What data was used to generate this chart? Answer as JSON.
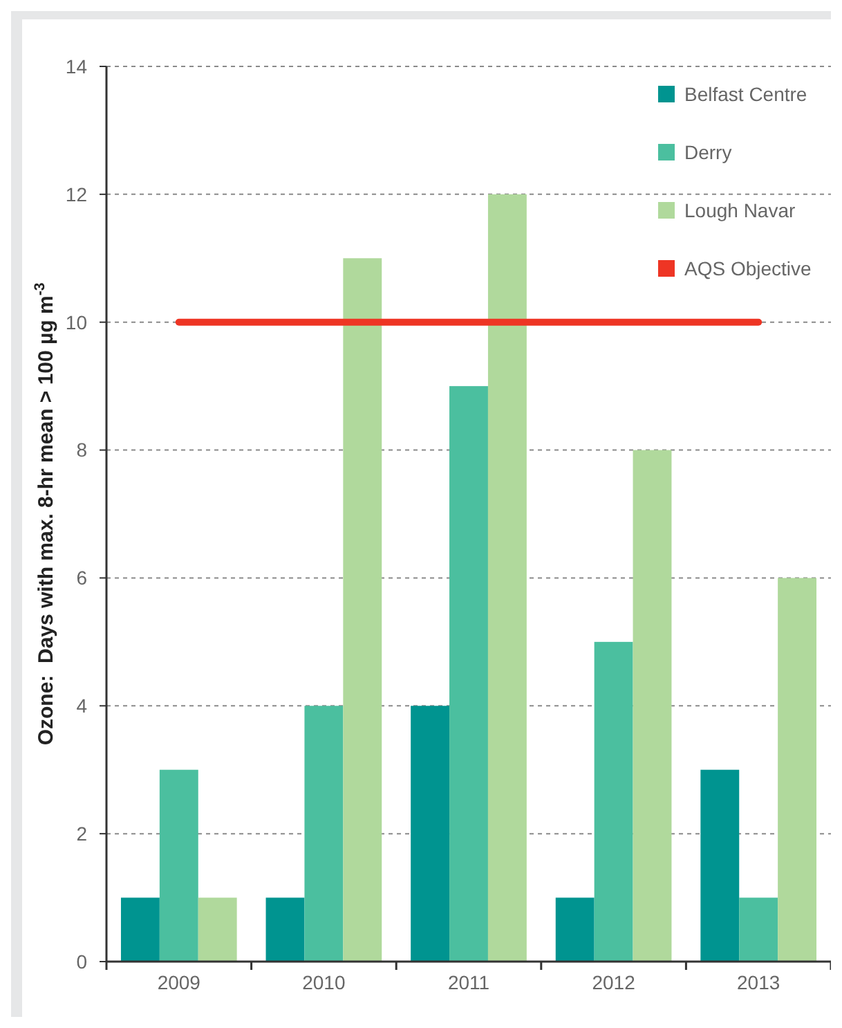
{
  "chart_data": {
    "type": "bar",
    "ylabel": "Ozone:  Days with max. 8-hr mean > 100 µg m$^{-3}$",
    "categories": [
      "2009",
      "2010",
      "2011",
      "2012",
      "2013"
    ],
    "series": [
      {
        "name": "Belfast Centre",
        "color": "#009490",
        "values": [
          1,
          1,
          4,
          1,
          3
        ]
      },
      {
        "name": "Derry",
        "color": "#4bbf9f",
        "values": [
          3,
          4,
          9,
          5,
          1
        ]
      },
      {
        "name": "Lough Navar",
        "color": "#b0d99c",
        "values": [
          1,
          11,
          12,
          8,
          6
        ]
      }
    ],
    "ref_lines": [
      {
        "axis": "y",
        "value": 10,
        "label": "AQS Objective",
        "color": "#ee3524"
      }
    ],
    "ylim": [
      0,
      14
    ],
    "yticks": [
      0,
      2,
      4,
      6,
      8,
      10,
      12,
      14
    ],
    "grid": "y",
    "legend": "top right"
  }
}
